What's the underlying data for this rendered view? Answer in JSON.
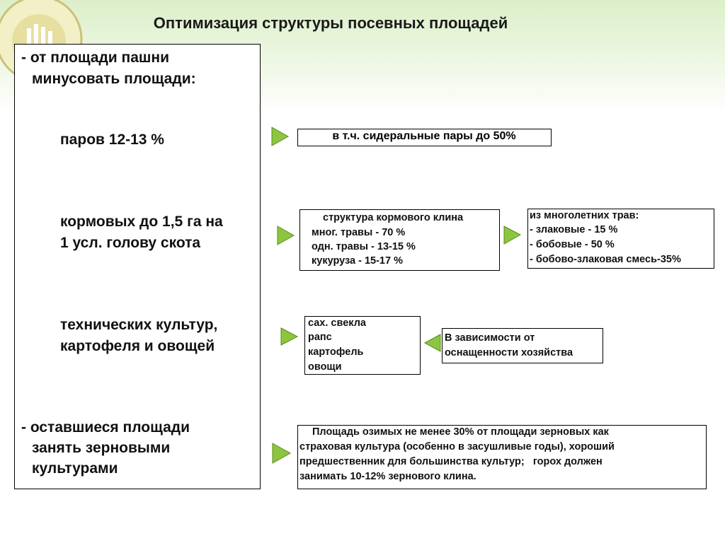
{
  "title": "Оптимизация структуры посевных площадей",
  "left_panel": {
    "items": [
      {
        "lines": [
          "- от площади пашни",
          "минусовать площади:"
        ]
      },
      {
        "lines": [
          "паров 12-13 %"
        ]
      },
      {
        "lines": [
          "кормовых до 1,5 га на",
          "1 усл. голову скота"
        ]
      },
      {
        "lines": [
          "технических культур,",
          "картофеля и овощей"
        ]
      },
      {
        "lines": [
          "- оставшиеся площади",
          "занять зерновыми",
          "культурами"
        ]
      }
    ]
  },
  "boxes": [
    {
      "lines": [
        "в т.ч. сидеральные пары до 50%"
      ]
    },
    {
      "lines": [
        "структура кормового клина",
        "мног. травы - 70 %",
        "одн. травы - 13-15 %",
        "кукуруза - 15-17 %"
      ]
    },
    {
      "lines": [
        "из многолетних трав:",
        "- злаковые - 15 %",
        "- бобовые - 50 %",
        "- бобово-злаковая смесь-35%"
      ]
    },
    {
      "lines": [
        "сах. свекла",
        "рапс",
        "картофель",
        "овощи"
      ]
    },
    {
      "lines": [
        "В зависимости от",
        "оснащенности хозяйства"
      ]
    },
    {
      "lines": [
        "Площадь озимых не менее 30% от площади зерновых как",
        "страховая культура (особенно в засушливые годы), хороший",
        "предшественник для большинства культур;   горох должен",
        "занимать 10-12% зернового клина."
      ]
    }
  ]
}
